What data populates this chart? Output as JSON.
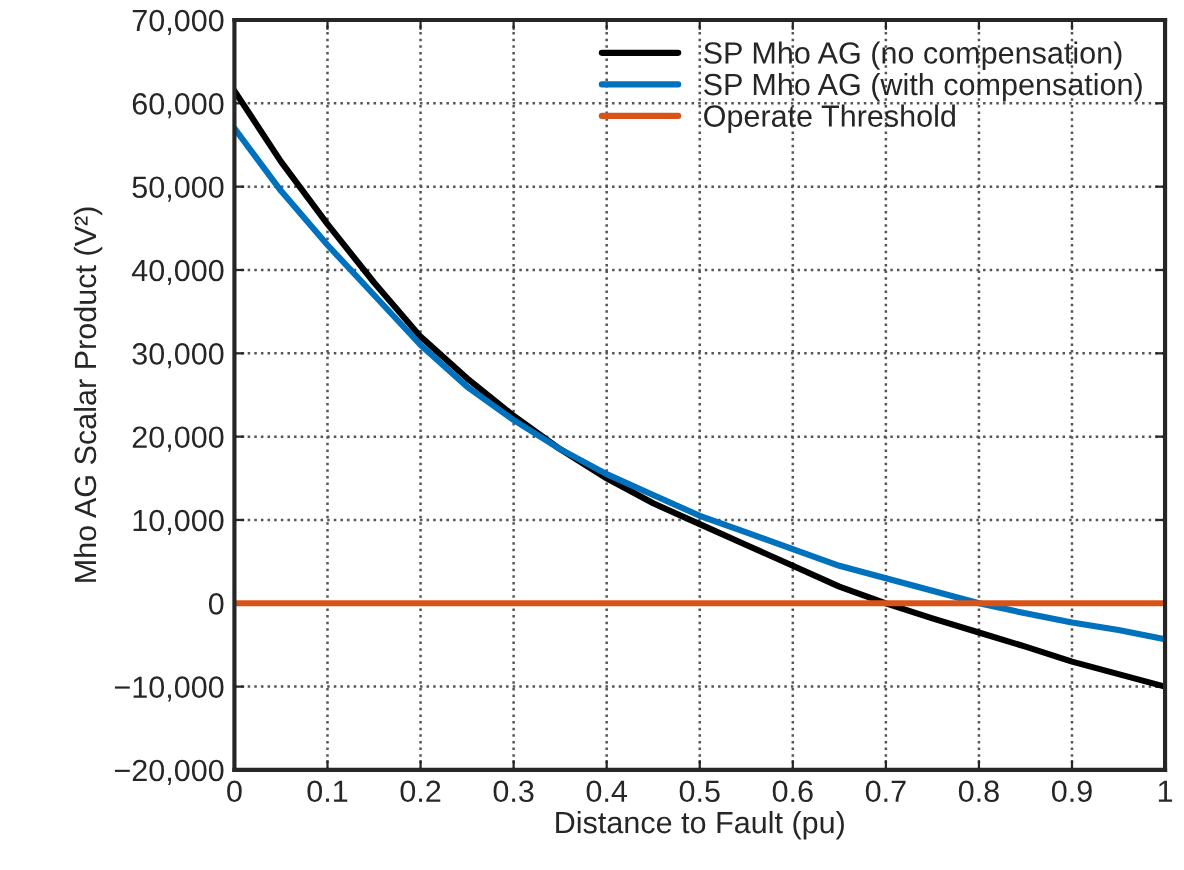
{
  "chart_data": {
    "type": "line",
    "xlabel": "Distance to Fault (pu)",
    "ylabel": "Mho AG Scalar Product (V²)",
    "x": [
      0,
      0.05,
      0.1,
      0.15,
      0.2,
      0.25,
      0.3,
      0.35,
      0.4,
      0.45,
      0.5,
      0.55,
      0.6,
      0.65,
      0.7,
      0.75,
      0.8,
      0.85,
      0.9,
      0.95,
      1.0
    ],
    "series": [
      {
        "name": "SP Mho AG (no compensation)",
        "color": "#000000",
        "values": [
          61500,
          53000,
          45500,
          38500,
          32000,
          27000,
          22500,
          18500,
          15000,
          12000,
          9500,
          7000,
          4500,
          2000,
          0,
          -1800,
          -3500,
          -5200,
          -7000,
          -8500,
          -10000
        ]
      },
      {
        "name": "SP Mho AG (with compensation)",
        "color": "#0072bd",
        "values": [
          57000,
          49500,
          43000,
          37000,
          31000,
          26000,
          22000,
          18500,
          15500,
          13000,
          10500,
          8500,
          6500,
          4500,
          3000,
          1500,
          0,
          -1200,
          -2300,
          -3200,
          -4300
        ]
      }
    ],
    "ref_lines": [
      {
        "axis": "y",
        "value": 0,
        "label": "Operate Threshold",
        "color": "#d95319"
      }
    ],
    "xlim": [
      0,
      1
    ],
    "xticks": [
      0,
      0.1,
      0.2,
      0.3,
      0.4,
      0.5,
      0.6,
      0.7,
      0.8,
      0.9,
      1
    ],
    "ylim": [
      -20000,
      70000
    ],
    "yticks": [
      {
        "value": -20000,
        "label": "−20,000"
      },
      {
        "value": -10000,
        "label": "−10,000"
      },
      0,
      {
        "value": 10000,
        "label": "10,000"
      },
      {
        "value": 20000,
        "label": "20,000"
      },
      {
        "value": 30000,
        "label": "30,000"
      },
      {
        "value": 40000,
        "label": "40,000"
      },
      {
        "value": 50000,
        "label": "50,000"
      },
      {
        "value": 60000,
        "label": "60,000"
      },
      {
        "value": 70000,
        "label": "70,000"
      }
    ],
    "grid": true,
    "legend": "top right",
    "marker": "none",
    "line_style": "solid"
  }
}
